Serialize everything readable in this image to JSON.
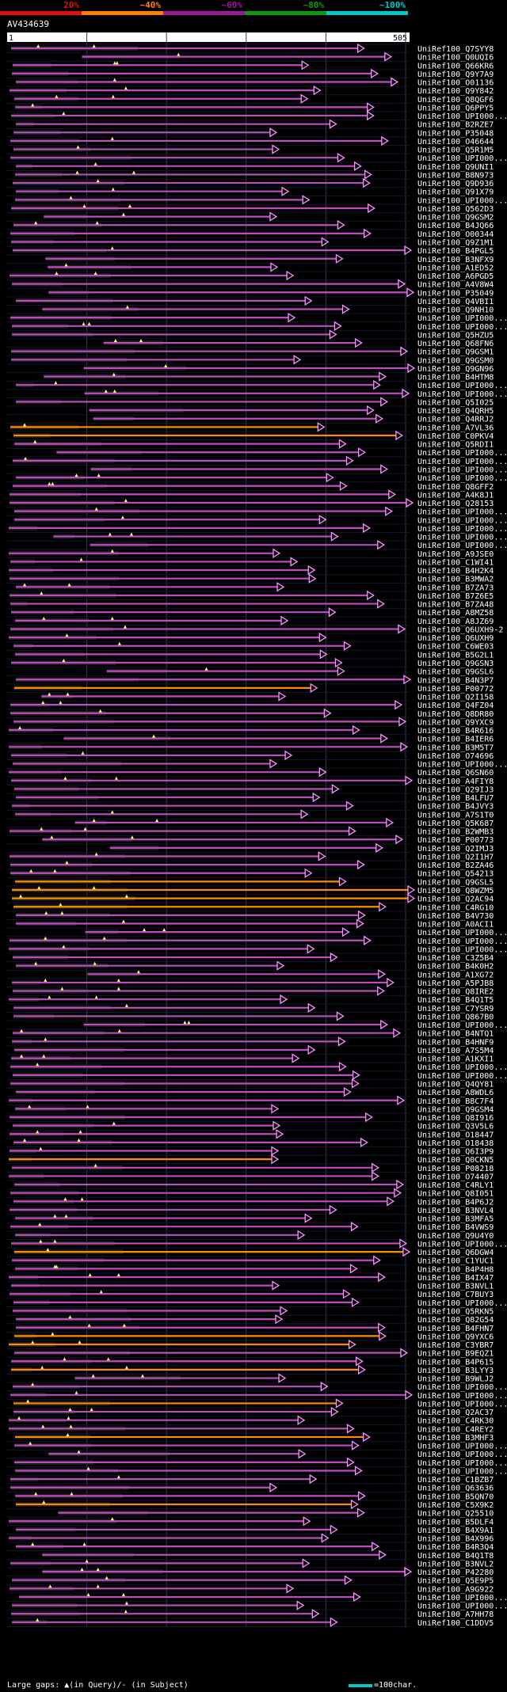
{
  "query_id": "AV434639",
  "ruler": {
    "start": "1",
    "end": "505",
    "length": 505
  },
  "identity_scale": [
    {
      "label": "20%",
      "color": "#e01010"
    },
    {
      "label": "~40%",
      "color": "#ff7f00"
    },
    {
      "label": "~60%",
      "color": "#9a1a9a"
    },
    {
      "label": "~80%",
      "color": "#0c9a0c"
    },
    {
      "label": "~100%",
      "color": "#00c8c8"
    }
  ],
  "colors": {
    "magenta": "#c04cc0",
    "orange": "#ff8c00",
    "arrowhead": "#ff90ff",
    "label": "#ffffff",
    "background": "#000000"
  },
  "footer": {
    "gaps_text": "Large gaps: ▲(in Query)/- (in Subject)",
    "scale_text": "=100char."
  },
  "hits": [
    "UniRef100_Q7SYY8",
    "UniRef100_Q0UQI6",
    "UniRef100_Q66KR6",
    "UniRef100_Q9Y7A9",
    "UniRef100_O01136",
    "UniRef100_Q9Y842",
    "UniRef100_Q8QGF6",
    "UniRef100_Q6PPY5",
    "UniRef100_UPI000...",
    "UniRef100_B2RZE7",
    "UniRef100_P35048",
    "UniRef100_O46644",
    "UniRef100_Q5R1M5",
    "UniRef100_UPI000...",
    "UniRef100_Q9UNI1",
    "UniRef100_B8N973",
    "UniRef100_Q9D936",
    "UniRef100_Q91X79",
    "UniRef100_UPI000...",
    "UniRef100_Q562D3",
    "UniRef100_Q9GSM2",
    "UniRef100_B4JQ66",
    "UniRef100_O00344",
    "UniRef100_Q9Z1M1",
    "UniRef100_B4PGL5",
    "UniRef100_B3NFX9",
    "UniRef100_A1ED52",
    "UniRef100_A6PGD5",
    "UniRef100_A4V8W4",
    "UniRef100_P35049",
    "UniRef100_Q4VBI1",
    "UniRef100_Q9NH10",
    "UniRef100_UPI000...",
    "UniRef100_UPI000...",
    "UniRef100_Q5HZU5",
    "UniRef100_Q68FN6",
    "UniRef100_Q9GSM1",
    "UniRef100_Q9GSM0",
    "UniRef100_Q9GN96",
    "UniRef100_B4HTM8",
    "UniRef100_UPI000...",
    "UniRef100_UPI000...",
    "UniRef100_Q5I025",
    "UniRef100_Q4QRH5",
    "UniRef100_Q4RRJ2",
    "UniRef100_A7VL36",
    "UniRef100_C0PKV4",
    "UniRef100_Q5RDI1",
    "UniRef100_UPI000...",
    "UniRef100_UPI000...",
    "UniRef100_UPI000...",
    "UniRef100_UPI000...",
    "UniRef100_Q8GFF2",
    "UniRef100_A4K8J1",
    "UniRef100_Q28153",
    "UniRef100_UPI000...",
    "UniRef100_UPI000...",
    "UniRef100_UPI000...",
    "UniRef100_UPI000...",
    "UniRef100_UPI000...",
    "UniRef100_A9JSE0",
    "UniRef100_C1WI41",
    "UniRef100_B4H2K4",
    "UniRef100_B3MWA2",
    "UniRef100_B7ZA73",
    "UniRef100_B7Z6E5",
    "UniRef100_B7ZA48",
    "UniRef100_A8MZ58",
    "UniRef100_A8JZ69",
    "UniRef100_Q6UXH9-2",
    "UniRef100_Q6UXH9",
    "UniRef100_C6WE03",
    "UniRef100_B5G2L1",
    "UniRef100_Q9GSN3",
    "UniRef100_Q9GSL6",
    "UniRef100_B4N3P7",
    "UniRef100_P00772",
    "UniRef100_Q2I158",
    "UniRef100_Q4FZ04",
    "UniRef100_Q8DR80",
    "UniRef100_Q9YXC9",
    "UniRef100_B4R616",
    "UniRef100_B4IER6",
    "UniRef100_B3M5T7",
    "UniRef100_O74696",
    "UniRef100_UPI000...",
    "UniRef100_Q6SN60",
    "UniRef100_A4FIY8",
    "UniRef100_Q29IJ3",
    "UniRef100_B4LFU7",
    "UniRef100_B4JVY3",
    "UniRef100_A7S1T0",
    "UniRef100_Q5K687",
    "UniRef100_B2WMB3",
    "UniRef100_P00773",
    "UniRef100_Q2IMJ3",
    "UniRef100_Q2I1H7",
    "UniRef100_B2ZA46",
    "UniRef100_Q54213",
    "UniRef100_Q9GSL5",
    "UniRef100_Q8WZM5",
    "UniRef100_Q2AC94",
    "UniRef100_C4RG10",
    "UniRef100_B4V730",
    "UniRef100_A0ACI1",
    "UniRef100_UPI000...",
    "UniRef100_UPI000...",
    "UniRef100_UPI000...",
    "UniRef100_C3Z5B4",
    "UniRef100_B4K0H2",
    "UniRef100_A1XG72",
    "UniRef100_A5PJB8",
    "UniRef100_Q8IRE2",
    "UniRef100_B4Q1T5",
    "UniRef100_C7YSR9",
    "UniRef100_Q867B0",
    "UniRef100_UPI000...",
    "UniRef100_B4NTQ1",
    "UniRef100_B4HNF9",
    "UniRef100_A7S5M4",
    "UniRef100_A1KXI1",
    "UniRef100_UPI000...",
    "UniRef100_UPI000...",
    "UniRef100_Q4QY81",
    "UniRef100_A8WDL6",
    "UniRef100_B8C7F4",
    "UniRef100_Q9GSM4",
    "UniRef100_Q8I916",
    "UniRef100_Q3V5L6",
    "UniRef100_O18447",
    "UniRef100_O18438",
    "UniRef100_Q6I3P9",
    "UniRef100_Q0CKN5",
    "UniRef100_P08218",
    "UniRef100_O74407",
    "UniRef100_C4RLY1",
    "UniRef100_Q8I051",
    "UniRef100_B4P6J2",
    "UniRef100_B3NVL4",
    "UniRef100_B3MFA5",
    "UniRef100_B4VWS9",
    "UniRef100_Q9U4Y0",
    "UniRef100_UPI000...",
    "UniRef100_Q6DGW4",
    "UniRef100_C1YUC1",
    "UniRef100_B4P4H8",
    "UniRef100_B4IX47",
    "UniRef100_B3NVL1",
    "UniRef100_C7BUY3",
    "UniRef100_UPI000...",
    "UniRef100_Q5RKN5",
    "UniRef100_Q82G54",
    "UniRef100_B4FHN7",
    "UniRef100_Q9YXC6",
    "UniRef100_C3YBR7",
    "UniRef100_B9EQZ1",
    "UniRef100_B4P615",
    "UniRef100_B3LYY3",
    "UniRef100_B9WLJ2",
    "UniRef100_UPI000...",
    "UniRef100_UPI000...",
    "UniRef100_UPI000...",
    "UniRef100_Q2AC37",
    "UniRef100_C4RK30",
    "UniRef100_C4REY2",
    "UniRef100_B3MHF3",
    "UniRef100_UPI000...",
    "UniRef100_UPI000...",
    "UniRef100_UPI000...",
    "UniRef100_UPI000...",
    "UniRef100_C1BZB7",
    "UniRef100_Q63636",
    "UniRef100_B5QN70",
    "UniRef100_C5X9K2",
    "UniRef100_Q25510",
    "UniRef100_B5DLF4",
    "UniRef100_B4X9A1",
    "UniRef100_B4X996",
    "UniRef100_B4R3Q4",
    "UniRef100_B4Q1T8",
    "UniRef100_B3NVL2",
    "UniRef100_P42280",
    "UniRef100_Q5E9P5",
    "UniRef100_A9G922",
    "UniRef100_UPI000...",
    "UniRef100_UPI000...",
    "UniRef100_A7HH78",
    "UniRef100_C1DDV5"
  ]
}
